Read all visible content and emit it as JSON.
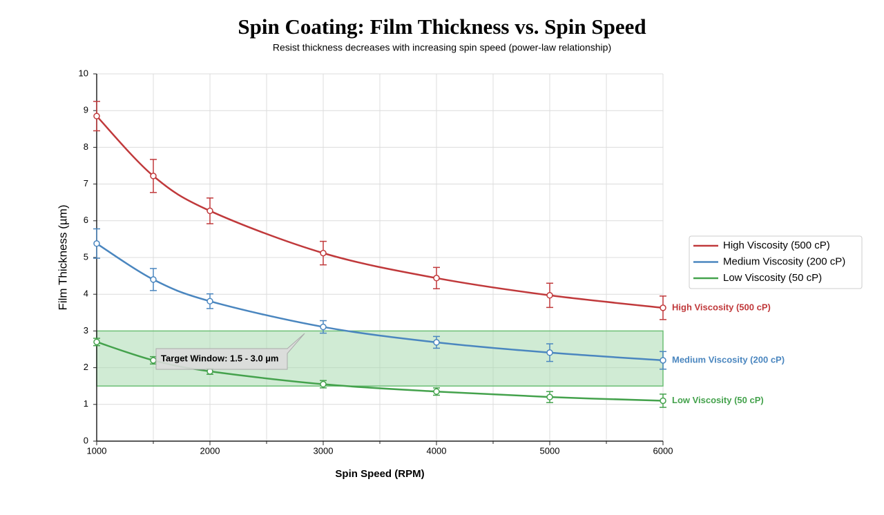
{
  "chart_data": {
    "type": "line",
    "title": "Spin Coating: Film Thickness vs. Spin Speed",
    "subtitle": "Resist thickness decreases with increasing spin speed (power-law relationship)",
    "x_label": "Spin Speed (RPM)",
    "y_label": "Film Thickness (µm)",
    "x": [
      1000,
      1500,
      2000,
      3000,
      4000,
      5000,
      6000
    ],
    "series": [
      {
        "name": "High Viscosity (500 cP)",
        "color": "#c0393b",
        "values": [
          8.85,
          7.22,
          6.27,
          5.12,
          4.44,
          3.97,
          3.63
        ],
        "errors": [
          0.4,
          0.45,
          0.35,
          0.32,
          0.29,
          0.33,
          0.32
        ]
      },
      {
        "name": "Medium Viscosity (200 cP)",
        "color": "#4a86bf",
        "values": [
          5.38,
          4.4,
          3.81,
          3.11,
          2.69,
          2.41,
          2.2
        ],
        "errors": [
          0.4,
          0.3,
          0.2,
          0.17,
          0.16,
          0.24,
          0.24
        ]
      },
      {
        "name": "Low Viscosity (50 cP)",
        "color": "#44a24c",
        "values": [
          2.7,
          2.2,
          1.9,
          1.55,
          1.35,
          1.2,
          1.1
        ],
        "errors": [
          0.1,
          0.1,
          0.08,
          0.1,
          0.1,
          0.15,
          0.18
        ]
      }
    ],
    "target_band": {
      "range": [
        1.5,
        3.0
      ],
      "label": "Target Window: 1.5 - 3.0 µm",
      "color": "#a9dbb0"
    },
    "xlim": [
      1000,
      6000
    ],
    "xticks": [
      1000,
      2000,
      3000,
      4000,
      5000,
      6000
    ],
    "x_minor_ticks": [
      1500,
      2500,
      3500,
      4500,
      5500
    ],
    "ylim": [
      0,
      10
    ],
    "yticks": [
      0,
      1,
      2,
      3,
      4,
      5,
      6,
      7,
      8,
      9,
      10
    ],
    "grid": true,
    "legend": "right"
  }
}
